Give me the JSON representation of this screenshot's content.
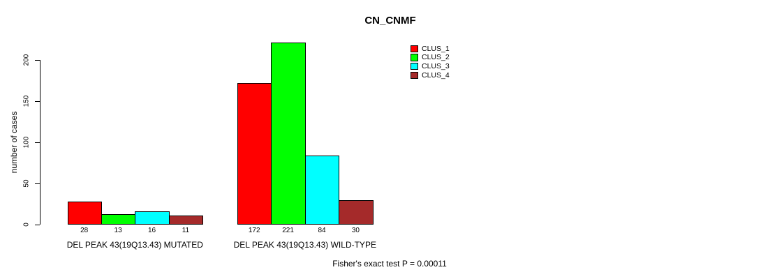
{
  "chart_data": {
    "type": "bar",
    "title": "CN_CNMF",
    "ylabel": "number of cases",
    "xlabel": "",
    "annotation": "Fisher's exact test P = 0.00011",
    "categories": [
      "DEL PEAK 43(19Q13.43) MUTATED",
      "DEL PEAK 43(19Q13.43) WILD-TYPE"
    ],
    "series": [
      {
        "name": "CLUS_1",
        "color": "#ff0000",
        "values": [
          28,
          172
        ]
      },
      {
        "name": "CLUS_2",
        "color": "#00ff00",
        "values": [
          13,
          221
        ]
      },
      {
        "name": "CLUS_3",
        "color": "#00ffff",
        "values": [
          16,
          84
        ]
      },
      {
        "name": "CLUS_4",
        "color": "#a52a2a",
        "values": [
          11,
          30
        ]
      }
    ],
    "yticks": [
      0,
      50,
      100,
      150,
      200
    ],
    "ylim": [
      0,
      221
    ],
    "grid": false,
    "legend_position": "top-right",
    "bar_value_labels_shown": true
  }
}
